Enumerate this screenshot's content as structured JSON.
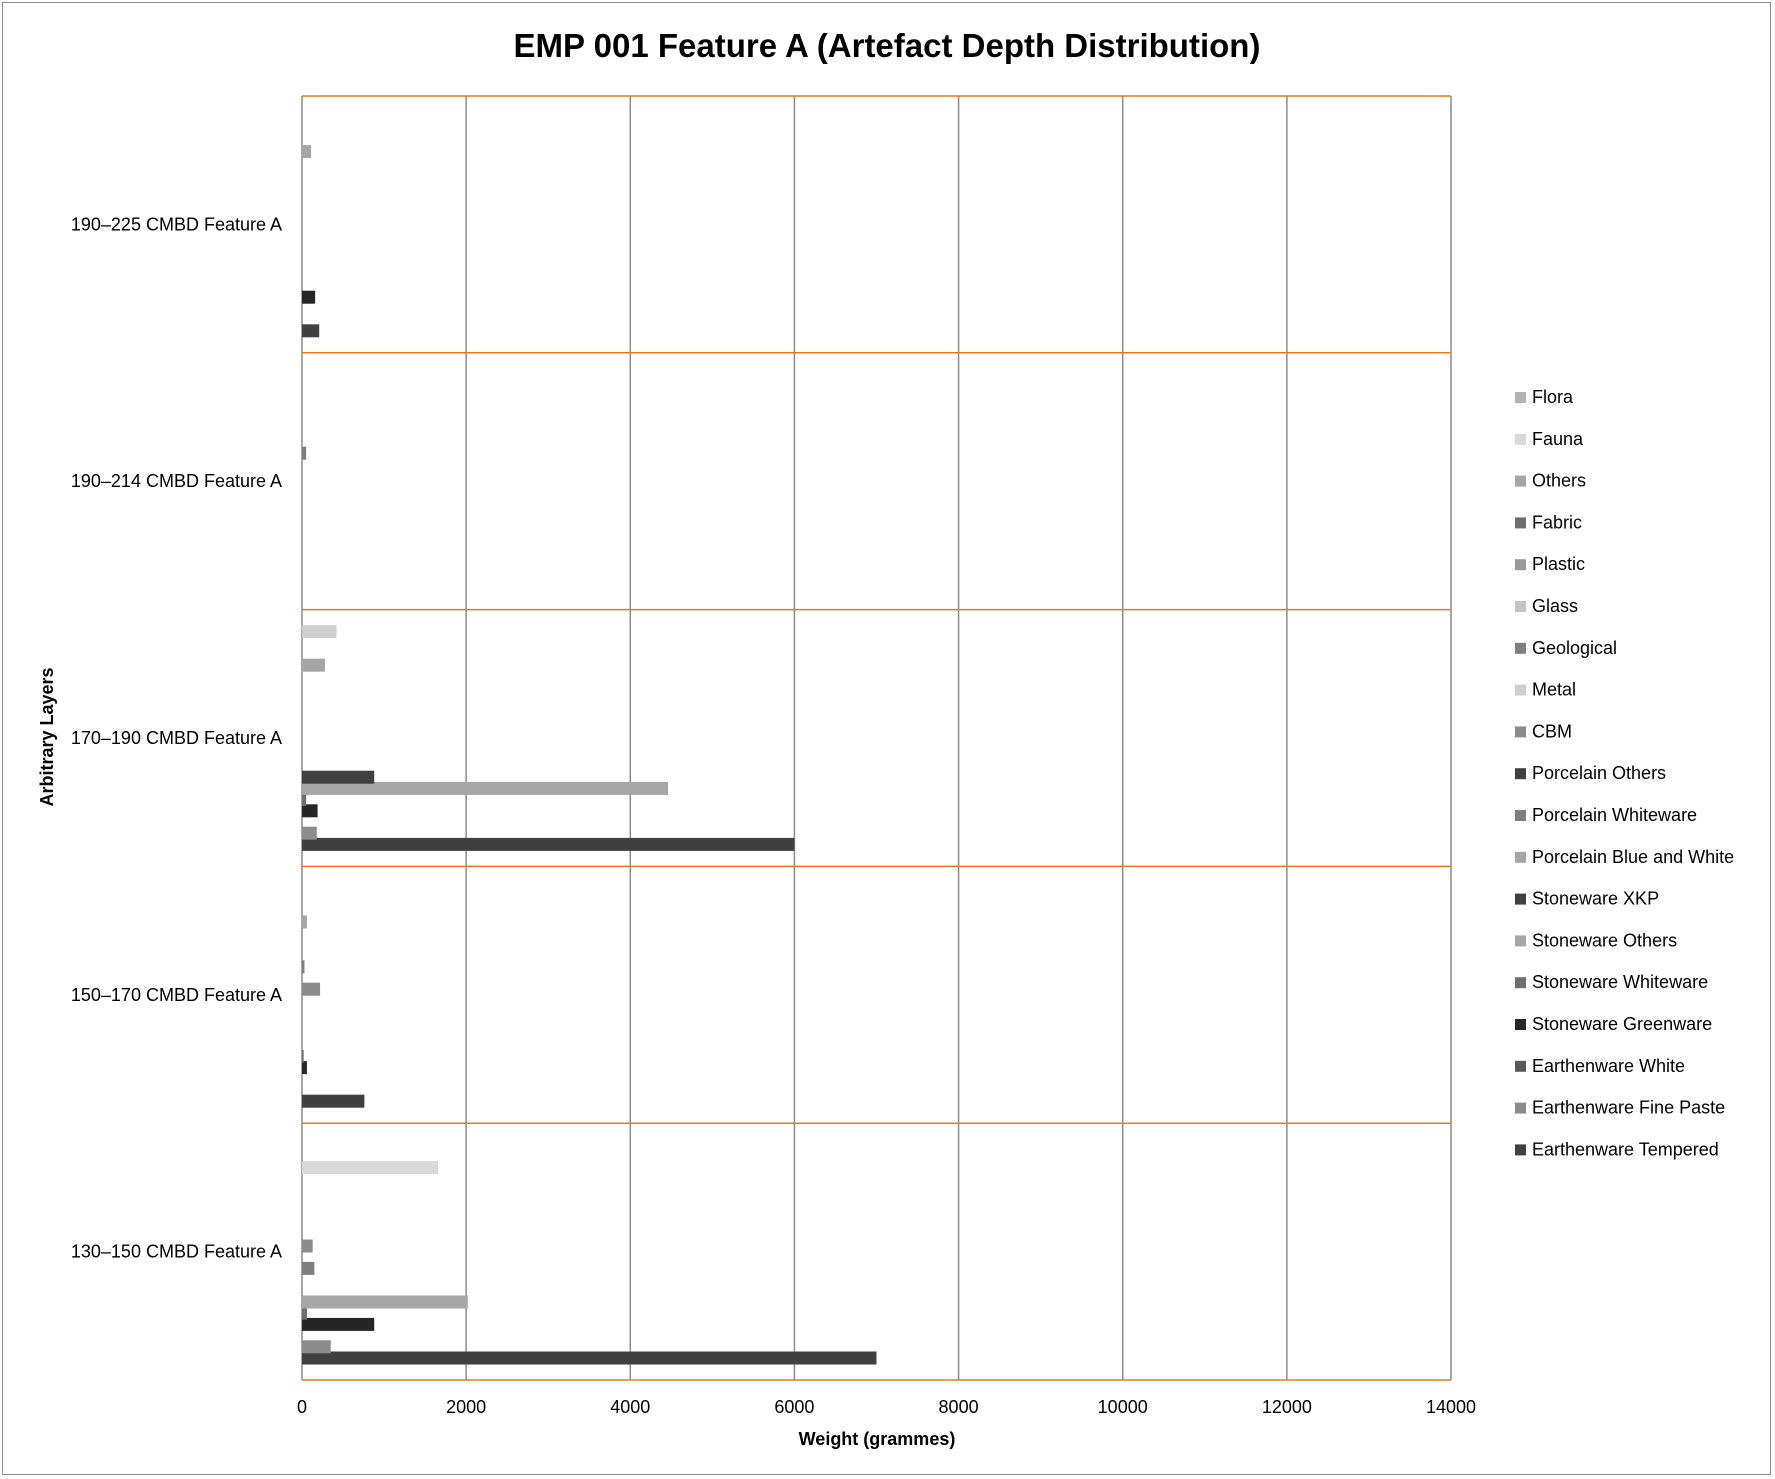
{
  "chart_data": {
    "type": "bar",
    "orientation": "horizontal",
    "title": "EMP 001 Feature A (Artefact Depth Distribution)",
    "xlabel": "Weight (grammes)",
    "ylabel": "Arbitrary Layers",
    "xlim": [
      0,
      14000
    ],
    "xticks": [
      0,
      2000,
      4000,
      6000,
      8000,
      10000,
      12000,
      14000
    ],
    "grid": true,
    "legend_position": "right",
    "categories": [
      "130–150 CMBD Feature A",
      "150–170 CMBD Feature A",
      "170–190 CMBD Feature A",
      "190–214 CMBD Feature A",
      "190–225 CMBD Feature A"
    ],
    "series": [
      {
        "name": "Earthenware Tempered",
        "color": "#404040",
        "values": [
          7000,
          760,
          6000,
          0,
          210
        ]
      },
      {
        "name": "Earthenware Fine Paste",
        "color": "#8c8c8c",
        "values": [
          350,
          0,
          180,
          0,
          0
        ]
      },
      {
        "name": "Earthenware White",
        "color": "#595959",
        "values": [
          0,
          0,
          0,
          0,
          0
        ]
      },
      {
        "name": "Stoneware Greenware",
        "color": "#262626",
        "values": [
          880,
          60,
          190,
          0,
          160
        ]
      },
      {
        "name": "Stoneware Whiteware",
        "color": "#6e6e6e",
        "values": [
          60,
          20,
          50,
          0,
          0
        ]
      },
      {
        "name": "Stoneware Others",
        "color": "#a6a6a6",
        "values": [
          2020,
          0,
          4460,
          0,
          0
        ]
      },
      {
        "name": "Stoneware XKP",
        "color": "#404040",
        "values": [
          0,
          0,
          880,
          0,
          0
        ]
      },
      {
        "name": "Porcelain Blue and White",
        "color": "#a6a6a6",
        "values": [
          0,
          0,
          0,
          0,
          0
        ]
      },
      {
        "name": "Porcelain Whiteware",
        "color": "#7f7f7f",
        "values": [
          150,
          0,
          0,
          0,
          0
        ]
      },
      {
        "name": "Porcelain Others",
        "color": "#404040",
        "values": [
          0,
          0,
          0,
          0,
          0
        ]
      },
      {
        "name": "CBM",
        "color": "#8c8c8c",
        "values": [
          130,
          220,
          0,
          0,
          0
        ]
      },
      {
        "name": "Metal",
        "color": "#cfcfcf",
        "values": [
          0,
          0,
          0,
          0,
          0
        ]
      },
      {
        "name": "Geological",
        "color": "#7f7f7f",
        "values": [
          0,
          30,
          0,
          50,
          0
        ]
      },
      {
        "name": "Glass",
        "color": "#c4c4c4",
        "values": [
          0,
          0,
          0,
          0,
          0
        ]
      },
      {
        "name": "Plastic",
        "color": "#999999",
        "values": [
          0,
          0,
          0,
          0,
          0
        ]
      },
      {
        "name": "Fabric",
        "color": "#6e6e6e",
        "values": [
          0,
          0,
          0,
          0,
          0
        ]
      },
      {
        "name": "Others",
        "color": "#a6a6a6",
        "values": [
          0,
          60,
          280,
          0,
          110
        ]
      },
      {
        "name": "Fauna",
        "color": "#d9d9d9",
        "values": [
          1660,
          0,
          0,
          0,
          0
        ]
      },
      {
        "name": "Flora",
        "color": "#b3b3b3",
        "values": [
          0,
          0,
          0,
          0,
          0
        ]
      },
      {
        "name": "Metal",
        "color": "#cfcfcf",
        "values": [
          0,
          0,
          420,
          0,
          0
        ]
      }
    ]
  },
  "legend": [
    {
      "name": "Flora",
      "color": "#b3b3b3"
    },
    {
      "name": "Fauna",
      "color": "#d9d9d9"
    },
    {
      "name": "Others",
      "color": "#a6a6a6"
    },
    {
      "name": "Fabric",
      "color": "#6e6e6e"
    },
    {
      "name": "Plastic",
      "color": "#999999"
    },
    {
      "name": "Glass",
      "color": "#c4c4c4"
    },
    {
      "name": "Geological",
      "color": "#7f7f7f"
    },
    {
      "name": "Metal",
      "color": "#cfcfcf"
    },
    {
      "name": "CBM",
      "color": "#8c8c8c"
    },
    {
      "name": "Porcelain Others",
      "color": "#404040"
    },
    {
      "name": "Porcelain Whiteware",
      "color": "#7f7f7f"
    },
    {
      "name": "Porcelain Blue and White",
      "color": "#a6a6a6"
    },
    {
      "name": "Stoneware XKP",
      "color": "#404040"
    },
    {
      "name": "Stoneware Others",
      "color": "#a6a6a6"
    },
    {
      "name": "Stoneware Whiteware",
      "color": "#6e6e6e"
    },
    {
      "name": "Stoneware Greenware",
      "color": "#262626"
    },
    {
      "name": "Earthenware White",
      "color": "#595959"
    },
    {
      "name": "Earthenware Fine Paste",
      "color": "#8c8c8c"
    },
    {
      "name": "Earthenware Tempered",
      "color": "#404040"
    }
  ],
  "colors": {
    "gridline": "#8c8c8c",
    "category_separator": "#e07b22",
    "frame": "#8c8c8c"
  }
}
